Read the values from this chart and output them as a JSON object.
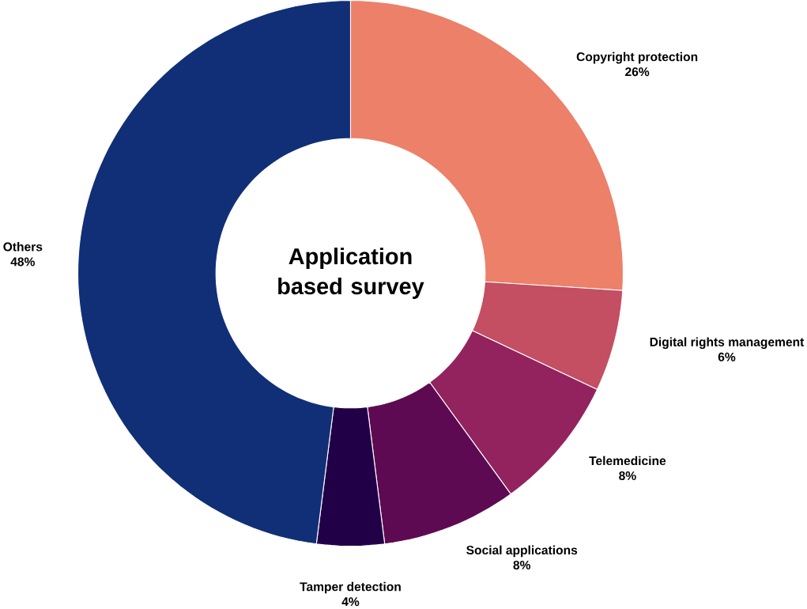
{
  "chart_data": {
    "type": "donut",
    "title": "Application based survey",
    "categories": [
      "Copyright protection",
      "Digital rights management",
      "Telemedicine",
      "Social applications",
      "Tamper detection",
      "Others"
    ],
    "values": [
      26,
      6,
      8,
      8,
      4,
      48
    ],
    "value_labels": [
      "26%",
      "6%",
      "8%",
      "8%",
      "4%",
      "48%"
    ],
    "colors": [
      "#ec8069",
      "#c44e62",
      "#92235e",
      "#5e0a52",
      "#220048",
      "#112f77"
    ]
  }
}
